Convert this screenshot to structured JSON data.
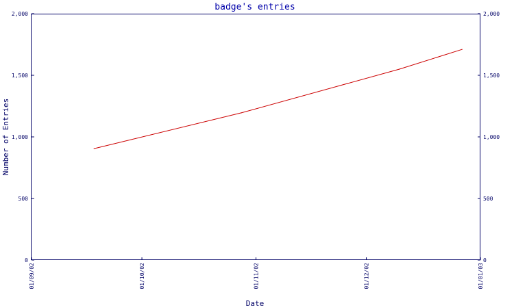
{
  "chart_data": {
    "type": "line",
    "title": "badge's entries",
    "xlabel": "Date",
    "ylabel": "Number of Entries",
    "x_ticks": [
      "01/09/02",
      "01/10/02",
      "01/11/02",
      "01/12/02",
      "01/01/03"
    ],
    "y_ticks": [
      "0",
      "500",
      "1,000",
      "1,500",
      "2,000"
    ],
    "xlim": [
      "2002-09-01",
      "2003-01-01"
    ],
    "ylim": [
      0,
      2000
    ],
    "grid": false,
    "right_axis": true,
    "series": [
      {
        "color": "#cc0000",
        "x": [
          "2002-09-18",
          "2002-10-28",
          "2002-12-10",
          "2002-12-27"
        ],
        "y": [
          905,
          1195,
          1550,
          1710
        ]
      }
    ]
  }
}
